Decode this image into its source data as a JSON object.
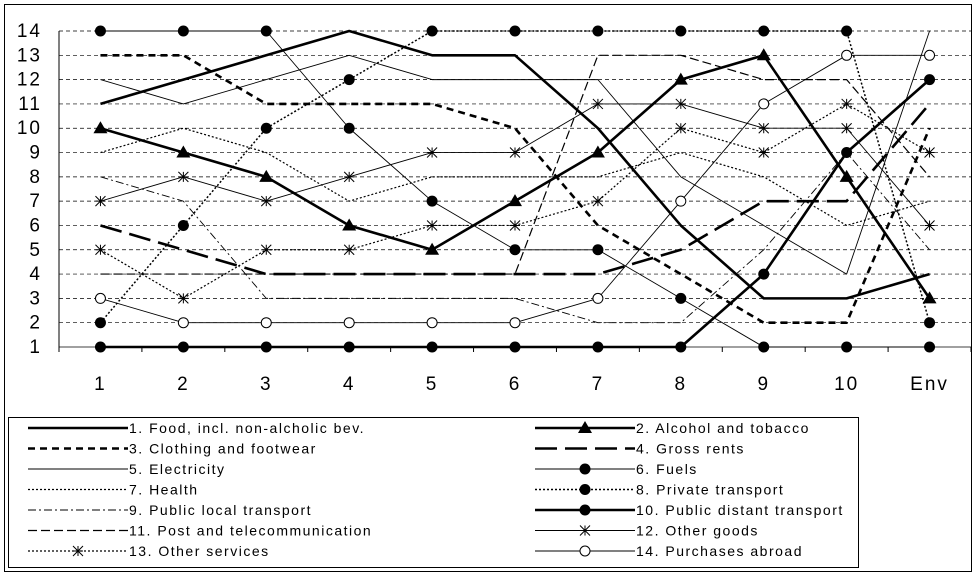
{
  "chart_data": {
    "type": "line",
    "categories": [
      "1",
      "2",
      "3",
      "4",
      "5",
      "6",
      "7",
      "8",
      "9",
      "10",
      "Env"
    ],
    "yticks": [
      "1",
      "2",
      "3",
      "4",
      "5",
      "6",
      "7",
      "8",
      "9",
      "10",
      "11",
      "12",
      "13",
      "14"
    ],
    "ylim": [
      1,
      14
    ],
    "grid": "horizontal dashed",
    "legend_position": "bottom",
    "title": "",
    "xlabel": "",
    "ylabel": "",
    "series": [
      {
        "name": "1. Food, incl. non-alcholic bev.",
        "values": [
          11,
          12,
          13,
          14,
          13,
          13,
          10,
          6,
          3,
          3,
          4
        ]
      },
      {
        "name": "2. Alcohol and tobacco",
        "values": [
          10,
          9,
          8,
          6,
          5,
          7,
          9,
          12,
          13,
          8,
          3
        ]
      },
      {
        "name": "3. Clothing and footwear",
        "values": [
          13,
          13,
          11,
          11,
          11,
          10,
          6,
          4,
          2,
          2,
          10
        ]
      },
      {
        "name": "4. Gross rents",
        "values": [
          6,
          5,
          4,
          4,
          4,
          4,
          4,
          5,
          7,
          7,
          11
        ]
      },
      {
        "name": "5. Electricity",
        "values": [
          12,
          11,
          12,
          13,
          12,
          12,
          12,
          8,
          6,
          4,
          14
        ]
      },
      {
        "name": "6. Fuels",
        "values": [
          14,
          14,
          14,
          10,
          7,
          5,
          5,
          3,
          1,
          1,
          1
        ]
      },
      {
        "name": "7. Health",
        "values": [
          9,
          10,
          9,
          7,
          8,
          8,
          8,
          9,
          8,
          6,
          7
        ]
      },
      {
        "name": "8. Private transport",
        "values": [
          2,
          6,
          10,
          12,
          14,
          14,
          14,
          14,
          14,
          14,
          2
        ]
      },
      {
        "name": "9. Public local transport",
        "values": [
          8,
          7,
          3,
          3,
          3,
          3,
          2,
          2,
          5,
          9,
          5
        ]
      },
      {
        "name": "10. Public distant transport",
        "values": [
          1,
          1,
          1,
          1,
          1,
          1,
          1,
          1,
          4,
          9,
          12
        ]
      },
      {
        "name": "11. Post and telecommunication",
        "values": [
          4,
          4,
          4,
          4,
          4,
          4,
          13,
          13,
          12,
          12,
          8
        ]
      },
      {
        "name": "12. Other goods",
        "values": [
          7,
          8,
          7,
          8,
          9,
          9,
          11,
          11,
          10,
          10,
          6
        ]
      },
      {
        "name": "13. Other services",
        "values": [
          5,
          3,
          5,
          5,
          6,
          6,
          7,
          10,
          9,
          11,
          9
        ]
      },
      {
        "name": "14. Purchases abroad",
        "values": [
          3,
          2,
          2,
          2,
          2,
          2,
          3,
          7,
          11,
          13,
          13
        ]
      }
    ]
  }
}
